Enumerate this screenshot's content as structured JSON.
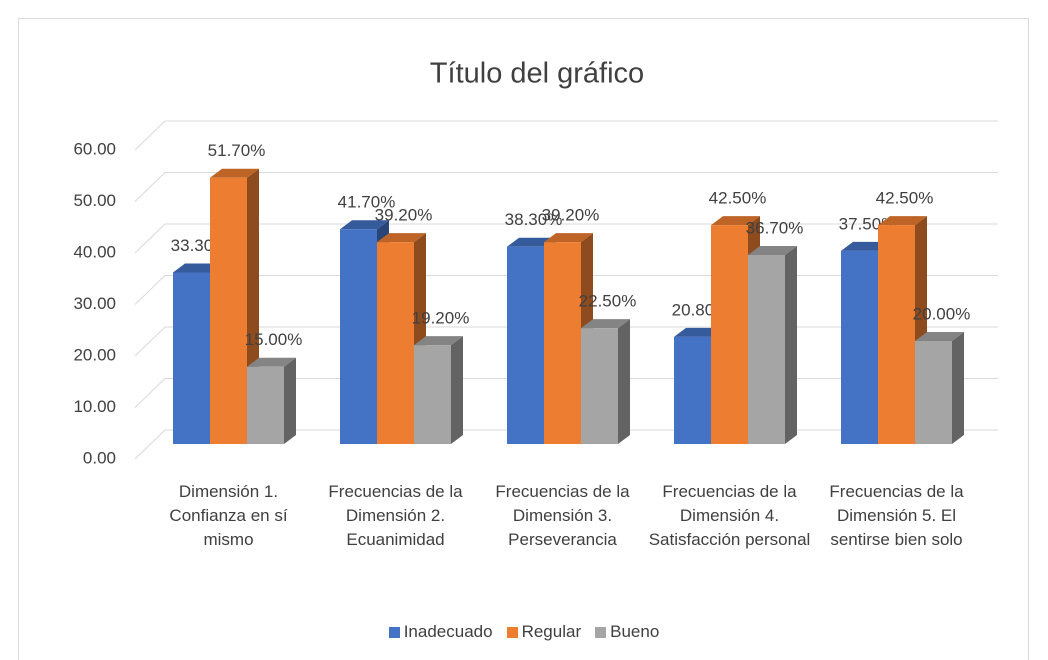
{
  "chart_data": {
    "type": "bar3d",
    "title": "Título del gráfico",
    "categories": [
      "Dimensión 1. Confianza en sí mismo",
      "Frecuencias de la Dimensión 2. Ecuanimidad",
      "Frecuencias de la Dimensión 3. Perseverancia",
      "Frecuencias de la Dimensión 4. Satisfacción personal",
      "Frecuencias de la Dimensión 5. El sentirse bien solo"
    ],
    "series": [
      {
        "name": "Inadecuado",
        "color": "#4472c4",
        "values": [
          33.3,
          41.7,
          38.3,
          20.8,
          37.5
        ],
        "value_labels": [
          "33.30%",
          "41.70%",
          "38.30%",
          "20.80%",
          "37.50%"
        ]
      },
      {
        "name": "Regular",
        "color": "#ed7d31",
        "values": [
          51.7,
          39.2,
          39.2,
          42.5,
          42.5
        ],
        "value_labels": [
          "51.70%",
          "39.20%",
          "39.20%",
          "42.50%",
          "42.50%"
        ]
      },
      {
        "name": "Bueno",
        "color": "#a5a5a5",
        "values": [
          15.0,
          19.2,
          22.5,
          36.7,
          20.0
        ],
        "value_labels": [
          "15.00%",
          "19.20%",
          "22.50%",
          "36.70%",
          "20.00%"
        ]
      }
    ],
    "ylim": [
      0,
      60
    ],
    "yticks": [
      {
        "value": 0,
        "label": "0.00"
      },
      {
        "value": 10,
        "label": "10.00"
      },
      {
        "value": 20,
        "label": "20.00"
      },
      {
        "value": 30,
        "label": "30.00"
      },
      {
        "value": 40,
        "label": "40.00"
      },
      {
        "value": 50,
        "label": "50.00"
      },
      {
        "value": 60,
        "label": "60.00"
      }
    ],
    "grid": true,
    "legend": "bottom"
  }
}
